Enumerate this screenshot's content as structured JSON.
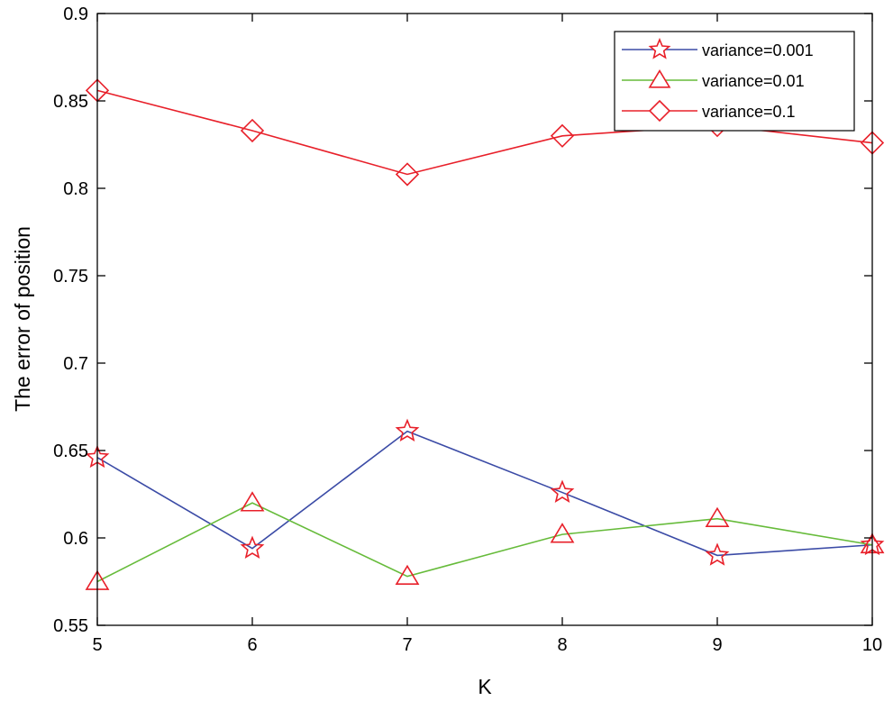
{
  "chart_data": {
    "type": "line",
    "title": "",
    "xlabel": "K",
    "ylabel": "The error of position",
    "x": [
      5,
      6,
      7,
      8,
      9,
      10
    ],
    "xlim": [
      5,
      10
    ],
    "ylim": [
      0.55,
      0.9
    ],
    "xticks": [
      "5",
      "6",
      "7",
      "8",
      "9",
      "10"
    ],
    "yticks": [
      "0.55",
      "0.6",
      "0.65",
      "0.7",
      "0.75",
      "0.8",
      "0.85",
      "0.9"
    ],
    "grid": false,
    "legend_position": "top-right",
    "marker_color": "#e8202a",
    "series": [
      {
        "name": "variance=0.001",
        "color": "#3b4ba6",
        "marker": "pentagram",
        "values": [
          0.646,
          0.594,
          0.661,
          0.626,
          0.59,
          0.596
        ]
      },
      {
        "name": "variance=0.01",
        "color": "#66bb3a",
        "marker": "triangle",
        "values": [
          0.575,
          0.62,
          0.578,
          0.602,
          0.611,
          0.596
        ]
      },
      {
        "name": "variance=0.1",
        "color": "#e8202a",
        "marker": "diamond",
        "values": [
          0.856,
          0.833,
          0.808,
          0.83,
          0.836,
          0.826
        ]
      }
    ]
  }
}
